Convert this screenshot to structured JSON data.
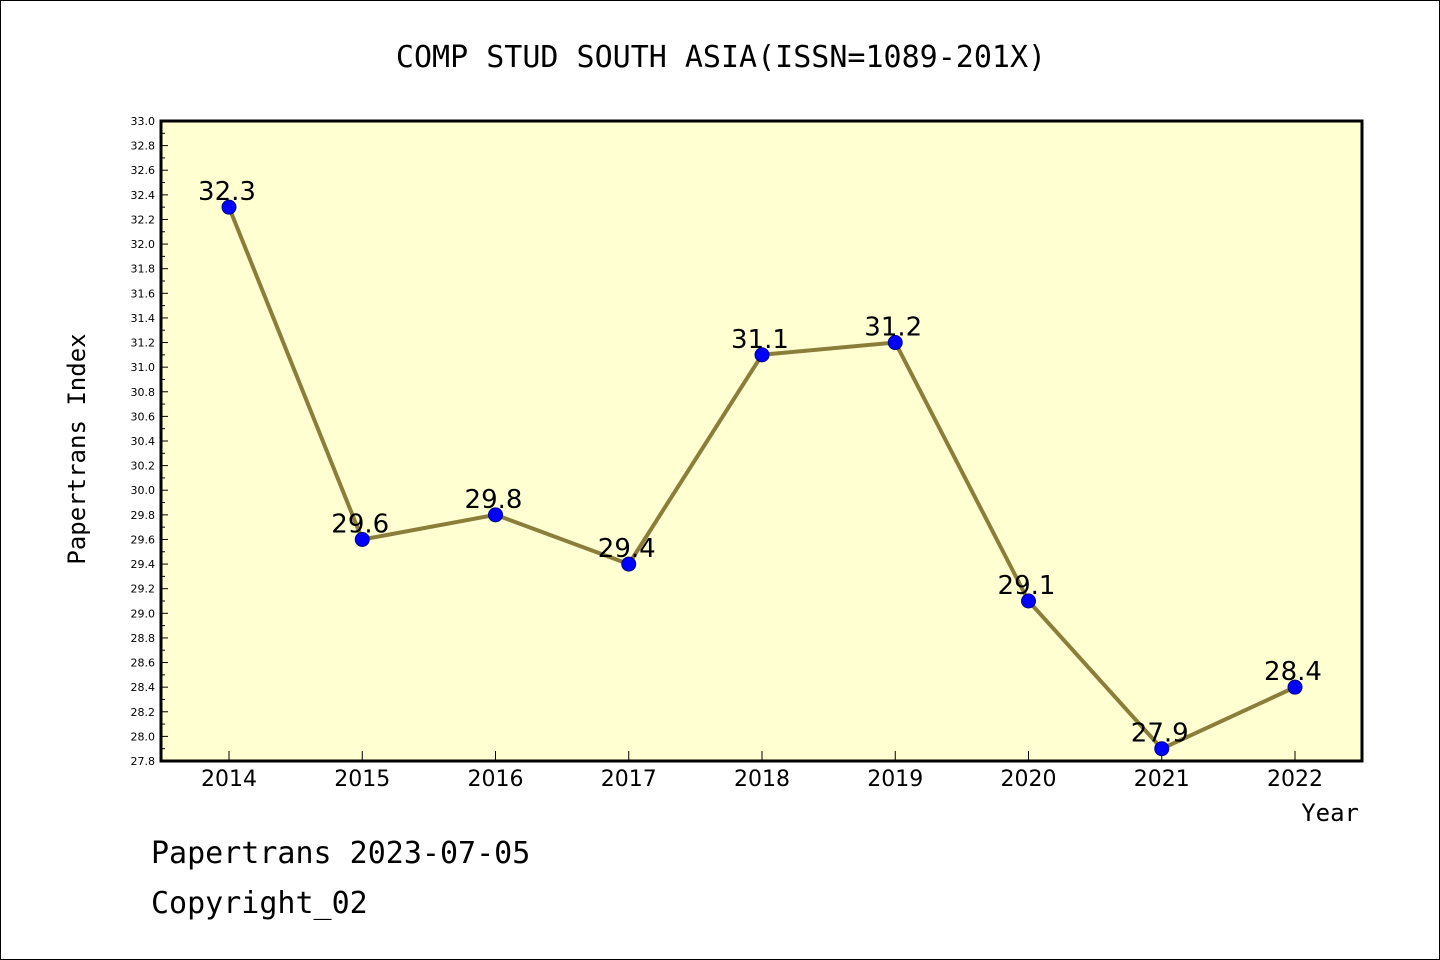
{
  "chart_data": {
    "type": "line",
    "title": "COMP STUD SOUTH ASIA(ISSN=1089-201X)",
    "xlabel": "Year",
    "ylabel": "Papertrans Index",
    "categories": [
      "2014",
      "2015",
      "2016",
      "2017",
      "2018",
      "2019",
      "2020",
      "2021",
      "2022"
    ],
    "series": [
      {
        "values": [
          32.3,
          29.6,
          29.8,
          29.4,
          31.1,
          31.2,
          29.1,
          27.9,
          28.4
        ]
      }
    ],
    "data_labels": [
      "32.3",
      "29.6",
      "29.8",
      "29.4",
      "31.1",
      "31.2",
      "29.1",
      "27.9",
      "28.4"
    ],
    "ylim": [
      27.8,
      33.0
    ],
    "yticks": [
      "27.8",
      "28.0",
      "28.2",
      "28.4",
      "28.6",
      "28.8",
      "29.0",
      "29.2",
      "29.4",
      "29.6",
      "29.8",
      "30.0",
      "30.2",
      "30.4",
      "30.6",
      "30.8",
      "31.0",
      "31.2",
      "31.4",
      "31.6",
      "31.8",
      "32.0",
      "32.2",
      "32.4",
      "32.6",
      "32.8",
      "33.0"
    ],
    "grid": false,
    "colors": {
      "plot_background": "#ffffd2",
      "line": "#8b7d3a",
      "marker": "#0000ff"
    }
  },
  "footer": {
    "line1": "Papertrans 2023-07-05",
    "line2": "Copyright_02"
  }
}
